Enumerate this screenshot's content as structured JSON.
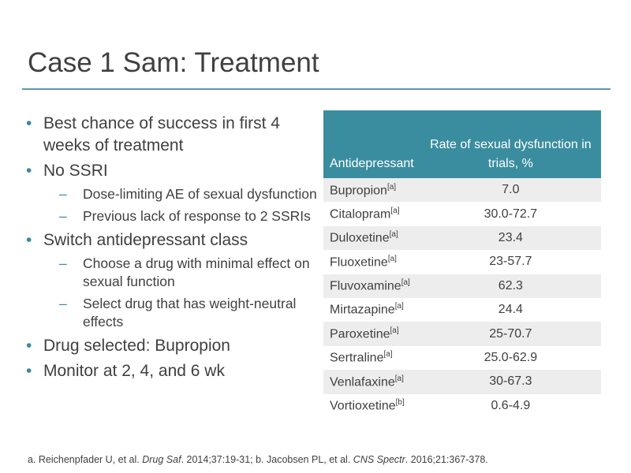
{
  "title": "Case 1 Sam: Treatment",
  "bullets": [
    {
      "text": "Best chance of success in first 4 weeks of treatment",
      "sub": []
    },
    {
      "text": "No SSRI",
      "sub": [
        "Dose-limiting AE of sexual dysfunction",
        "Previous lack of response to 2 SSRIs"
      ]
    },
    {
      "text": "Switch antidepressant class",
      "sub": [
        "Choose a drug with minimal effect on sexual function",
        "Select drug that has weight-neutral effects"
      ]
    },
    {
      "text": "Drug selected: Bupropion",
      "sub": []
    },
    {
      "text": "Monitor at 2, 4, and 6 wk",
      "sub": []
    }
  ],
  "table": {
    "headers": [
      "Antidepressant",
      "Rate of sexual dysfunction in trials, %"
    ],
    "rows": [
      {
        "drug": "Bupropion",
        "ref": "[a]",
        "rate": "7.0"
      },
      {
        "drug": "Citalopram",
        "ref": "[a]",
        "rate": "30.0-72.7"
      },
      {
        "drug": "Duloxetine",
        "ref": "[a]",
        "rate": "23.4"
      },
      {
        "drug": "Fluoxetine",
        "ref": "[a]",
        "rate": "23-57.7"
      },
      {
        "drug": "Fluvoxamine",
        "ref": "[a]",
        "rate": "62.3"
      },
      {
        "drug": "Mirtazapine",
        "ref": "[a]",
        "rate": "24.4"
      },
      {
        "drug": "Paroxetine",
        "ref": "[a]",
        "rate": "25-70.7"
      },
      {
        "drug": "Sertraline",
        "ref": "[a]",
        "rate": "25.0-62.9"
      },
      {
        "drug": "Venlafaxine",
        "ref": "[a]",
        "rate": "30-67.3"
      },
      {
        "drug": "Vortioxetine",
        "ref": "[b]",
        "rate": "0.6-4.9"
      }
    ]
  },
  "footnote": {
    "a_pre": "a. Reichenpfader U, et al. ",
    "a_journal": "Drug Saf",
    "a_post": ". 2014;37:19-31; b. Jacobsen PL, et al. ",
    "b_journal": "CNS Spectr",
    "b_post": ". 2016;21:367-378."
  },
  "colors": {
    "accent": "#3a8d9f",
    "row_alt": "#ededed"
  }
}
